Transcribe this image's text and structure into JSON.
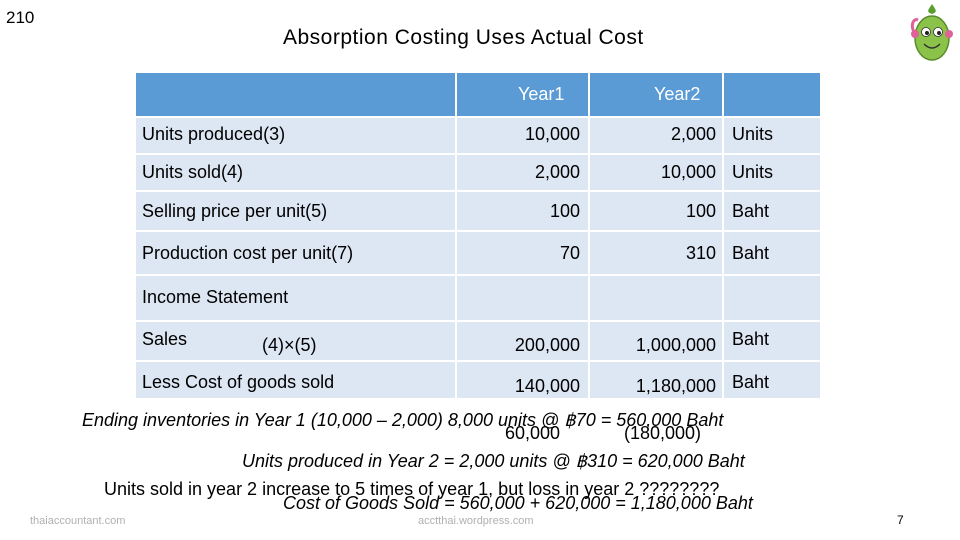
{
  "slide": {
    "number_top": "210",
    "title": "Absorption Costing Uses Actual Cost",
    "number_bottom": "7"
  },
  "table": {
    "headers": [
      "Year1",
      "Year2"
    ],
    "rows": [
      {
        "label": "Units produced(3)",
        "y1": "10,000",
        "y2": "2,000",
        "unit": "Units"
      },
      {
        "label": "Units sold(4)",
        "y1": "2,000",
        "y2": "10,000",
        "unit": "Units"
      },
      {
        "label": "Selling price per unit(5)",
        "y1": "100",
        "y2": "100",
        "unit": "Baht"
      },
      {
        "label": "Production cost per unit(7)",
        "y1": "70",
        "y2": "310",
        "unit": "Baht"
      }
    ],
    "income_statement_label": "Income Statement",
    "sales": {
      "label": "Sales",
      "formula": "(4)×(5)",
      "y1": "200,000",
      "y2": "1,000,000",
      "unit": "Baht"
    },
    "cogs": {
      "label": "Less Cost of goods sold",
      "y1": "140,000",
      "y2": "1,180,000",
      "unit": "Baht"
    }
  },
  "notes": {
    "ending_inventories": "Ending inventories in Year 1 (10,000 – 2,000) 8,000 units @ ฿70 = 560,000 Baht",
    "overlay_60": "60,000",
    "overlay_180": "(180,000)",
    "units_produced_y2": "Units produced in Year 2 = 2,000 units @ ฿310 = 620,000 Baht",
    "units_sold_increase": "Units sold in year 2 increase to 5 times of year 1, but loss in year 2 ????????",
    "cogs_calc": "Cost of Goods Sold = 560,000 + 620,000 = 1,180,000 Baht"
  },
  "footer": {
    "left": "thaiaccountant.com",
    "center": "acctthai.wordpress.com"
  },
  "colors": {
    "header_blue": "#5b9bd5",
    "row_blue": "#dde6f3",
    "mascot_green": "#8bc34a"
  },
  "icons": {
    "mascot": "smiling-plant-mascot-icon"
  }
}
